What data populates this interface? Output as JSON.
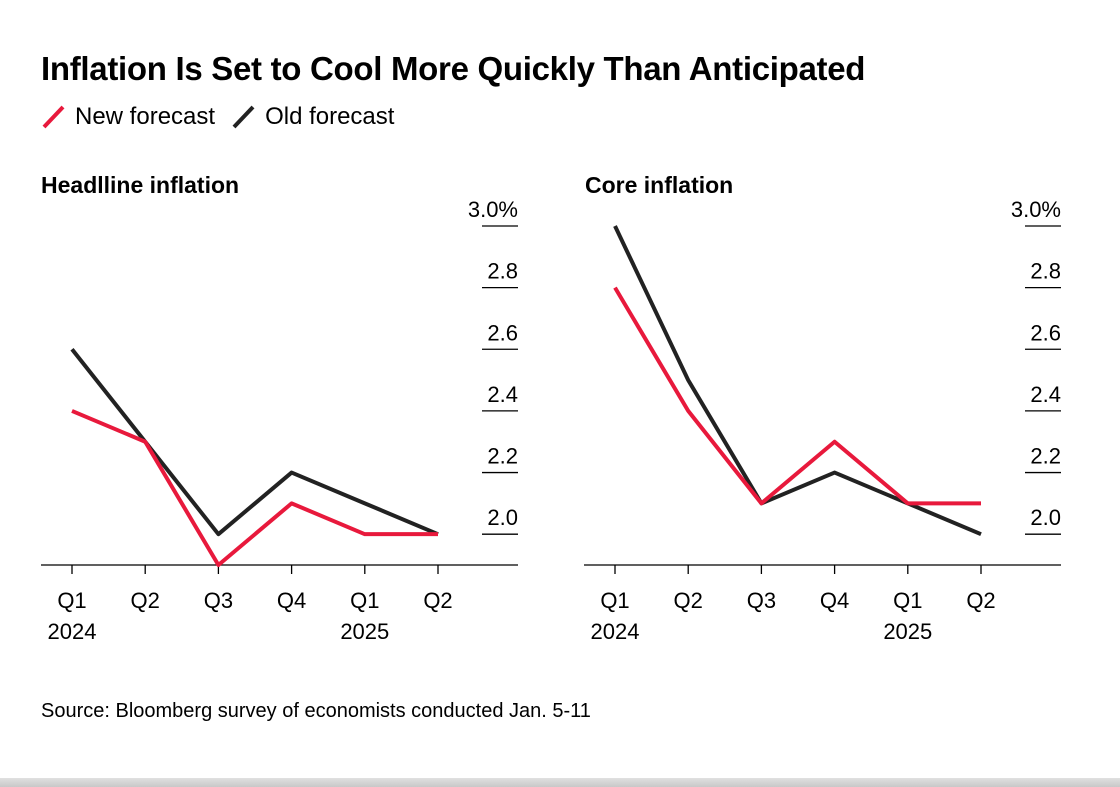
{
  "title": "Inflation Is Set to Cool More Quickly Than Anticipated",
  "legend": [
    {
      "label": "New forecast",
      "color": "#e8193c"
    },
    {
      "label": "Old forecast",
      "color": "#222222"
    }
  ],
  "source": "Source: Bloomberg survey of economists conducted Jan. 5-11",
  "chart_data": [
    {
      "type": "line",
      "title": "Headlline inflation",
      "categories": [
        "Q1",
        "Q2",
        "Q3",
        "Q4",
        "Q1",
        "Q2"
      ],
      "year_labels": [
        "2024",
        "",
        "",
        "",
        "2025",
        ""
      ],
      "y_ticks": [
        2.0,
        2.2,
        2.4,
        2.6,
        2.8,
        3.0
      ],
      "y_tick_labels": [
        "2.0",
        "2.2",
        "2.4",
        "2.6",
        "2.8",
        "3.0%"
      ],
      "ylim": [
        1.9,
        3.0
      ],
      "y_axis_side": "right",
      "series": [
        {
          "name": "New forecast",
          "color": "#e8193c",
          "values": [
            2.4,
            2.3,
            1.9,
            2.1,
            2.0,
            2.0
          ]
        },
        {
          "name": "Old forecast",
          "color": "#222222",
          "values": [
            2.6,
            2.3,
            2.0,
            2.2,
            2.1,
            2.0
          ]
        }
      ]
    },
    {
      "type": "line",
      "title": "Core inflation",
      "categories": [
        "Q1",
        "Q2",
        "Q3",
        "Q4",
        "Q1",
        "Q2"
      ],
      "year_labels": [
        "2024",
        "",
        "",
        "",
        "2025",
        ""
      ],
      "y_ticks": [
        2.0,
        2.2,
        2.4,
        2.6,
        2.8,
        3.0
      ],
      "y_tick_labels": [
        "2.0",
        "2.2",
        "2.4",
        "2.6",
        "2.8",
        "3.0%"
      ],
      "ylim": [
        1.9,
        3.0
      ],
      "y_axis_side": "right",
      "series": [
        {
          "name": "New forecast",
          "color": "#e8193c",
          "values": [
            2.8,
            2.4,
            2.1,
            2.3,
            2.1,
            2.1
          ]
        },
        {
          "name": "Old forecast",
          "color": "#222222",
          "values": [
            3.0,
            2.5,
            2.1,
            2.2,
            2.1,
            2.0
          ]
        }
      ]
    }
  ]
}
